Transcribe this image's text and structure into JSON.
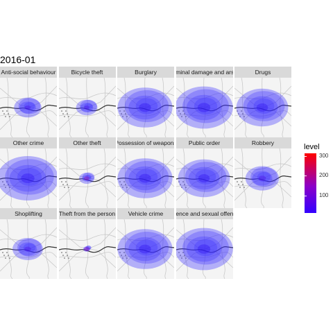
{
  "title": "2016-01",
  "legend": {
    "title": "level",
    "ticks": [
      {
        "value": 300,
        "label": "300"
      },
      {
        "value": 200,
        "label": "200"
      },
      {
        "value": 100,
        "label": "100"
      }
    ],
    "range": [
      10,
      315
    ],
    "colors": {
      "low": "#3300ff",
      "mid": "#8c00c8",
      "high": "#ff0000"
    }
  },
  "facets": [
    {
      "label": "Anti-social behaviour",
      "spread": 0.45,
      "peak": "mid"
    },
    {
      "label": "Bicycle theft",
      "spread": 0.35,
      "peak": "mid"
    },
    {
      "label": "Burglary",
      "spread": 0.9,
      "peak": "low"
    },
    {
      "label": "Criminal damage and arson",
      "spread": 0.95,
      "peak": "low"
    },
    {
      "label": "Drugs",
      "spread": 0.85,
      "peak": "low"
    },
    {
      "label": "Other crime",
      "spread": 1.0,
      "peak": "low"
    },
    {
      "label": "Other theft",
      "spread": 0.25,
      "peak": "high"
    },
    {
      "label": "Possession of weapons",
      "spread": 0.9,
      "peak": "low"
    },
    {
      "label": "Public order",
      "spread": 0.85,
      "peak": "low"
    },
    {
      "label": "Robbery",
      "spread": 0.55,
      "peak": "mid"
    },
    {
      "label": "Shoplifting",
      "spread": 0.5,
      "peak": "mid"
    },
    {
      "label": "Theft from the person",
      "spread": 0.12,
      "peak": "high"
    },
    {
      "label": "Vehicle crime",
      "spread": 0.9,
      "peak": "low"
    },
    {
      "label": "Violence and sexual offences",
      "spread": 0.95,
      "peak": "low"
    }
  ]
}
